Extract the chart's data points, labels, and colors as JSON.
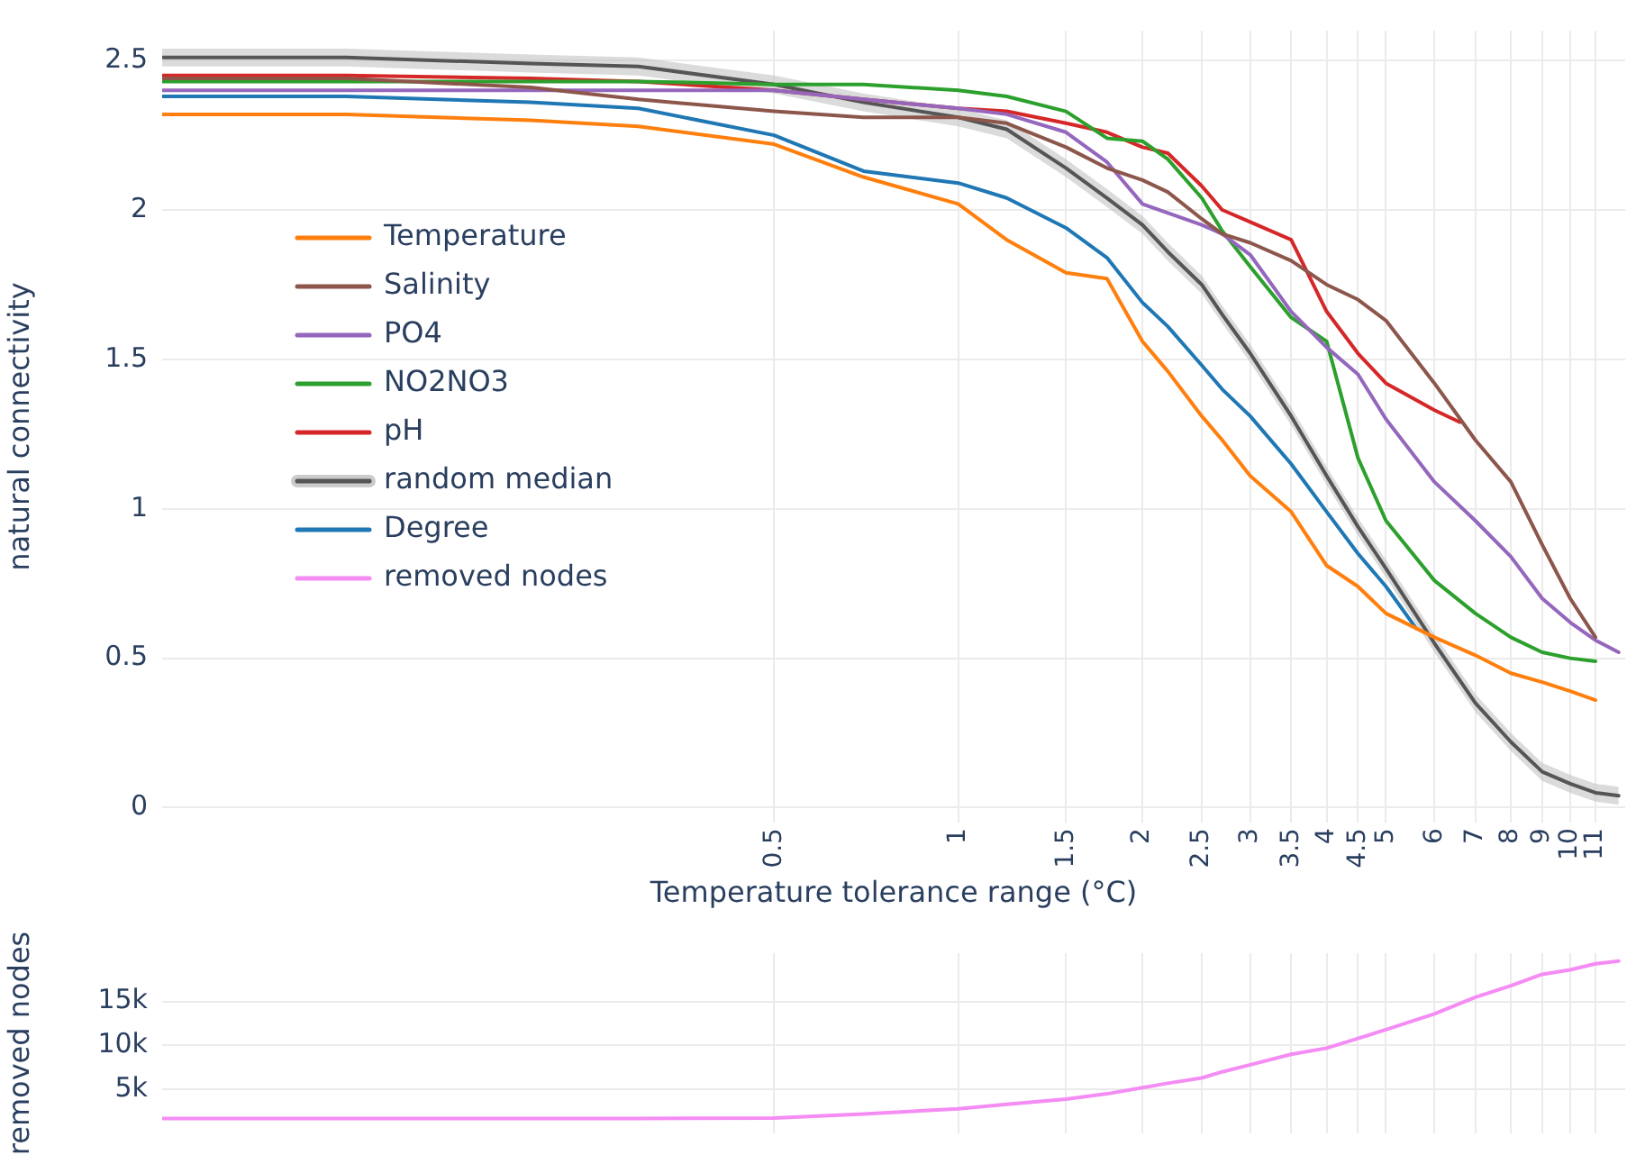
{
  "chart_data": [
    {
      "type": "line",
      "xlabel": "Temperature tolerance range (°C)",
      "ylabel": "natural connectivity",
      "log": "x",
      "x": [
        0.05,
        0.1,
        0.2,
        0.3,
        0.5,
        0.7,
        1,
        1.2,
        1.5,
        1.75,
        2,
        2.2,
        2.5,
        2.7,
        3,
        3.5,
        4,
        4.5,
        5,
        6,
        7,
        8,
        9,
        10,
        11,
        12
      ],
      "xlim": [
        0.05,
        12.3
      ],
      "xticks": [
        0.5,
        1,
        1.5,
        2,
        2.5,
        3,
        3.5,
        4,
        4.5,
        5,
        6,
        7,
        8,
        9,
        10,
        11
      ],
      "ylim": [
        -0.05,
        2.6
      ],
      "yticks": [
        0,
        0.5,
        1,
        1.5,
        2,
        2.5
      ],
      "grid": true,
      "legend": "top left",
      "marker": "none",
      "line_style": "solid",
      "series": [
        {
          "name": "Temperature",
          "color": "#ff7f0e",
          "values": [
            2.32,
            2.32,
            2.3,
            2.28,
            2.22,
            2.11,
            2.02,
            1.9,
            1.79,
            1.77,
            1.56,
            1.46,
            1.31,
            1.23,
            1.11,
            0.99,
            0.81,
            0.74,
            0.65,
            0.57,
            0.51,
            0.45,
            0.42,
            0.39,
            0.36,
            null
          ]
        },
        {
          "name": "Salinity",
          "color": "#8c564b",
          "values": [
            2.44,
            2.44,
            2.41,
            2.37,
            2.33,
            2.31,
            2.31,
            2.29,
            2.21,
            2.14,
            2.1,
            2.06,
            1.97,
            1.92,
            1.89,
            1.83,
            1.75,
            1.7,
            1.63,
            1.42,
            1.23,
            1.09,
            0.88,
            0.7,
            0.57,
            null
          ]
        },
        {
          "name": "PO4",
          "color": "#9467bd",
          "values": [
            2.4,
            2.4,
            2.4,
            2.4,
            2.4,
            2.37,
            2.34,
            2.32,
            2.26,
            2.16,
            2.02,
            1.99,
            1.95,
            1.92,
            1.85,
            1.66,
            1.54,
            1.45,
            1.3,
            1.09,
            0.96,
            0.84,
            0.7,
            0.62,
            0.56,
            0.52
          ]
        },
        {
          "name": "NO2NO3",
          "color": "#2ca02c",
          "values": [
            2.43,
            2.43,
            2.43,
            2.43,
            2.42,
            2.42,
            2.4,
            2.38,
            2.33,
            2.24,
            2.23,
            2.17,
            2.04,
            1.93,
            1.81,
            1.64,
            1.56,
            1.17,
            0.96,
            0.76,
            0.65,
            0.57,
            0.52,
            0.5,
            0.49,
            null
          ]
        },
        {
          "name": "pH",
          "color": "#d62728",
          "x": [
            0.05,
            0.1,
            0.2,
            0.3,
            0.5,
            0.7,
            1,
            1.2,
            1.5,
            1.75,
            2,
            2.2,
            2.5,
            2.7,
            3,
            3.5,
            4,
            4.5,
            5,
            6,
            6.6
          ],
          "values": [
            2.45,
            2.45,
            2.44,
            2.43,
            2.4,
            2.37,
            2.34,
            2.33,
            2.29,
            2.26,
            2.21,
            2.19,
            2.08,
            2.0,
            1.96,
            1.9,
            1.66,
            1.52,
            1.42,
            1.33,
            1.29
          ]
        },
        {
          "name": "random median",
          "color": "#555555",
          "values": [
            2.51,
            2.51,
            2.49,
            2.48,
            2.42,
            2.36,
            2.31,
            2.27,
            2.14,
            2.04,
            1.95,
            1.86,
            1.75,
            1.65,
            1.52,
            1.31,
            1.11,
            0.94,
            0.8,
            0.55,
            0.35,
            0.22,
            0.12,
            0.08,
            0.05,
            0.04
          ],
          "lower": [
            2.48,
            2.48,
            2.46,
            2.45,
            2.39,
            2.33,
            2.28,
            2.24,
            2.11,
            2.01,
            1.92,
            1.83,
            1.72,
            1.62,
            1.49,
            1.28,
            1.08,
            0.91,
            0.77,
            0.52,
            0.32,
            0.19,
            0.09,
            0.05,
            0.02,
            0.01
          ],
          "upper": [
            2.54,
            2.54,
            2.52,
            2.51,
            2.45,
            2.39,
            2.34,
            2.3,
            2.17,
            2.07,
            1.98,
            1.89,
            1.78,
            1.68,
            1.55,
            1.34,
            1.14,
            0.97,
            0.83,
            0.58,
            0.38,
            0.25,
            0.15,
            0.11,
            0.08,
            0.07
          ]
        },
        {
          "name": "Degree",
          "color": "#1f77b4",
          "x": [
            0.05,
            0.1,
            0.2,
            0.3,
            0.5,
            0.7,
            1,
            1.2,
            1.5,
            1.75,
            2,
            2.2,
            2.5,
            2.7,
            3,
            3.5,
            4,
            4.5,
            5,
            5.6
          ],
          "values": [
            2.38,
            2.38,
            2.36,
            2.34,
            2.25,
            2.13,
            2.09,
            2.04,
            1.94,
            1.84,
            1.69,
            1.61,
            1.48,
            1.4,
            1.31,
            1.15,
            0.99,
            0.85,
            0.74,
            0.6
          ]
        }
      ]
    },
    {
      "type": "line",
      "ylabel": "removed nodes",
      "log": "x",
      "x": [
        0.05,
        0.1,
        0.2,
        0.3,
        0.5,
        0.7,
        1,
        1.2,
        1.5,
        1.75,
        2,
        2.2,
        2.5,
        2.7,
        3,
        3.5,
        4,
        4.5,
        5,
        6,
        7,
        8,
        9,
        10,
        11,
        12
      ],
      "xlim": [
        0.05,
        12.3
      ],
      "xticks": [
        0.5,
        1,
        1.5,
        2,
        2.5,
        3,
        3.5,
        4,
        4.5,
        5,
        6,
        7,
        8,
        9,
        10,
        11
      ],
      "ylim": [
        0,
        20500
      ],
      "yticks": [
        {
          "value": 5000,
          "label": "5k"
        },
        {
          "value": 10000,
          "label": "10k"
        },
        {
          "value": 15000,
          "label": "15k"
        }
      ],
      "grid": true,
      "tick_labels": "y",
      "marker": "none",
      "line_style": "solid",
      "series": [
        {
          "name": "removed nodes",
          "color": "#f48cf4",
          "values": [
            1700,
            1700,
            1700,
            1700,
            1750,
            2200,
            2800,
            3300,
            3900,
            4500,
            5200,
            5700,
            6300,
            7000,
            7800,
            9000,
            9700,
            10800,
            11800,
            13600,
            15500,
            16800,
            18100,
            18600,
            19300,
            19600
          ]
        }
      ]
    }
  ]
}
